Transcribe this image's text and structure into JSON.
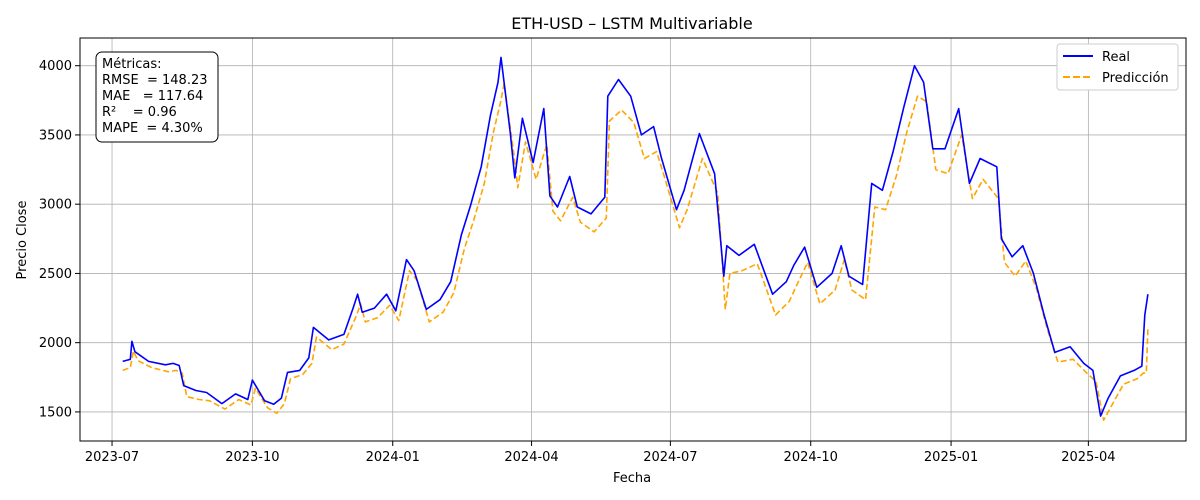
{
  "chart_data": {
    "type": "line",
    "title": "ETH-USD – LSTM Multivariable",
    "xlabel": "Fecha",
    "ylabel": "Precio Close",
    "x_range": [
      "2023-06-10",
      "2025-06-04"
    ],
    "ylim": [
      1290,
      4200
    ],
    "x_ticks": [
      "2023-07-01",
      "2023-10-01",
      "2024-01-01",
      "2024-04-01",
      "2024-07-01",
      "2024-10-01",
      "2025-01-01",
      "2025-04-01"
    ],
    "x_tick_labels": [
      "2023-07",
      "2023-10",
      "2024-01",
      "2024-04",
      "2024-07",
      "2024-10",
      "2025-01",
      "2025-04"
    ],
    "y_ticks": [
      1500,
      2000,
      2500,
      3000,
      3500,
      4000
    ],
    "y_tick_labels": [
      "1500",
      "2000",
      "2500",
      "3000",
      "3500",
      "4000"
    ],
    "grid": true,
    "legend_position": "top-right",
    "series": [
      {
        "name": "Real",
        "color": "#0000ff",
        "style": "solid",
        "points": [
          [
            "2023-07-08",
            1865
          ],
          [
            "2023-07-13",
            1880
          ],
          [
            "2023-07-14",
            2010
          ],
          [
            "2023-07-16",
            1935
          ],
          [
            "2023-07-25",
            1865
          ],
          [
            "2023-08-05",
            1840
          ],
          [
            "2023-08-10",
            1850
          ],
          [
            "2023-08-14",
            1835
          ],
          [
            "2023-08-17",
            1690
          ],
          [
            "2023-08-25",
            1655
          ],
          [
            "2023-09-01",
            1640
          ],
          [
            "2023-09-11",
            1560
          ],
          [
            "2023-09-20",
            1630
          ],
          [
            "2023-09-28",
            1590
          ],
          [
            "2023-10-01",
            1730
          ],
          [
            "2023-10-09",
            1580
          ],
          [
            "2023-10-15",
            1555
          ],
          [
            "2023-10-20",
            1600
          ],
          [
            "2023-10-24",
            1785
          ],
          [
            "2023-11-01",
            1800
          ],
          [
            "2023-11-07",
            1890
          ],
          [
            "2023-11-10",
            2110
          ],
          [
            "2023-11-20",
            2020
          ],
          [
            "2023-11-30",
            2060
          ],
          [
            "2023-12-06",
            2250
          ],
          [
            "2023-12-09",
            2350
          ],
          [
            "2023-12-12",
            2220
          ],
          [
            "2023-12-20",
            2250
          ],
          [
            "2023-12-28",
            2350
          ],
          [
            "2024-01-03",
            2230
          ],
          [
            "2024-01-10",
            2600
          ],
          [
            "2024-01-15",
            2520
          ],
          [
            "2024-01-23",
            2240
          ],
          [
            "2024-02-01",
            2310
          ],
          [
            "2024-02-08",
            2440
          ],
          [
            "2024-02-15",
            2780
          ],
          [
            "2024-02-21",
            2990
          ],
          [
            "2024-02-28",
            3270
          ],
          [
            "2024-03-05",
            3640
          ],
          [
            "2024-03-10",
            3880
          ],
          [
            "2024-03-12",
            4060
          ],
          [
            "2024-03-18",
            3520
          ],
          [
            "2024-03-21",
            3190
          ],
          [
            "2024-03-26",
            3620
          ],
          [
            "2024-04-02",
            3300
          ],
          [
            "2024-04-09",
            3690
          ],
          [
            "2024-04-13",
            3060
          ],
          [
            "2024-04-18",
            2980
          ],
          [
            "2024-04-26",
            3200
          ],
          [
            "2024-05-01",
            2980
          ],
          [
            "2024-05-10",
            2930
          ],
          [
            "2024-05-19",
            3050
          ],
          [
            "2024-05-21",
            3780
          ],
          [
            "2024-05-28",
            3900
          ],
          [
            "2024-06-05",
            3780
          ],
          [
            "2024-06-12",
            3500
          ],
          [
            "2024-06-20",
            3560
          ],
          [
            "2024-06-25",
            3340
          ],
          [
            "2024-07-05",
            2960
          ],
          [
            "2024-07-10",
            3100
          ],
          [
            "2024-07-20",
            3510
          ],
          [
            "2024-07-30",
            3220
          ],
          [
            "2024-08-05",
            2480
          ],
          [
            "2024-08-07",
            2700
          ],
          [
            "2024-08-15",
            2630
          ],
          [
            "2024-08-25",
            2710
          ],
          [
            "2024-09-06",
            2350
          ],
          [
            "2024-09-15",
            2440
          ],
          [
            "2024-09-20",
            2560
          ],
          [
            "2024-09-27",
            2690
          ],
          [
            "2024-10-05",
            2400
          ],
          [
            "2024-10-15",
            2500
          ],
          [
            "2024-10-21",
            2700
          ],
          [
            "2024-10-26",
            2480
          ],
          [
            "2024-11-04",
            2420
          ],
          [
            "2024-11-10",
            3150
          ],
          [
            "2024-11-17",
            3100
          ],
          [
            "2024-11-24",
            3380
          ],
          [
            "2024-12-01",
            3700
          ],
          [
            "2024-12-08",
            4000
          ],
          [
            "2024-12-14",
            3880
          ],
          [
            "2024-12-20",
            3400
          ],
          [
            "2024-12-28",
            3400
          ],
          [
            "2025-01-06",
            3690
          ],
          [
            "2025-01-13",
            3150
          ],
          [
            "2025-01-20",
            3330
          ],
          [
            "2025-01-31",
            3270
          ],
          [
            "2025-02-03",
            2750
          ],
          [
            "2025-02-10",
            2620
          ],
          [
            "2025-02-17",
            2700
          ],
          [
            "2025-02-24",
            2500
          ],
          [
            "2025-03-03",
            2200
          ],
          [
            "2025-03-10",
            1930
          ],
          [
            "2025-03-20",
            1970
          ],
          [
            "2025-03-29",
            1850
          ],
          [
            "2025-04-04",
            1800
          ],
          [
            "2025-04-09",
            1470
          ],
          [
            "2025-04-14",
            1600
          ],
          [
            "2025-04-22",
            1760
          ],
          [
            "2025-05-01",
            1800
          ],
          [
            "2025-05-06",
            1830
          ],
          [
            "2025-05-08",
            2200
          ],
          [
            "2025-05-10",
            2350
          ]
        ]
      },
      {
        "name": "Predicción",
        "color": "#ffa500",
        "style": "dashed",
        "points": [
          [
            "2023-07-08",
            1800
          ],
          [
            "2023-07-13",
            1820
          ],
          [
            "2023-07-15",
            1940
          ],
          [
            "2023-07-18",
            1870
          ],
          [
            "2023-07-27",
            1820
          ],
          [
            "2023-08-07",
            1790
          ],
          [
            "2023-08-12",
            1800
          ],
          [
            "2023-08-16",
            1780
          ],
          [
            "2023-08-19",
            1610
          ],
          [
            "2023-08-27",
            1590
          ],
          [
            "2023-09-03",
            1580
          ],
          [
            "2023-09-13",
            1520
          ],
          [
            "2023-09-22",
            1590
          ],
          [
            "2023-09-30",
            1550
          ],
          [
            "2023-10-03",
            1670
          ],
          [
            "2023-10-11",
            1530
          ],
          [
            "2023-10-17",
            1490
          ],
          [
            "2023-10-22",
            1560
          ],
          [
            "2023-10-26",
            1740
          ],
          [
            "2023-11-03",
            1770
          ],
          [
            "2023-11-09",
            1850
          ],
          [
            "2023-11-12",
            2040
          ],
          [
            "2023-11-22",
            1950
          ],
          [
            "2023-11-30",
            1990
          ],
          [
            "2023-12-08",
            2190
          ],
          [
            "2023-12-11",
            2280
          ],
          [
            "2023-12-14",
            2150
          ],
          [
            "2023-12-22",
            2180
          ],
          [
            "2023-12-30",
            2270
          ],
          [
            "2024-01-05",
            2160
          ],
          [
            "2024-01-12",
            2520
          ],
          [
            "2024-01-17",
            2450
          ],
          [
            "2024-01-25",
            2150
          ],
          [
            "2024-02-03",
            2220
          ],
          [
            "2024-02-10",
            2360
          ],
          [
            "2024-02-17",
            2680
          ],
          [
            "2024-02-23",
            2880
          ],
          [
            "2024-03-01",
            3150
          ],
          [
            "2024-03-07",
            3520
          ],
          [
            "2024-03-12",
            3750
          ],
          [
            "2024-03-14",
            3870
          ],
          [
            "2024-03-20",
            3400
          ],
          [
            "2024-03-23",
            3120
          ],
          [
            "2024-03-28",
            3450
          ],
          [
            "2024-04-04",
            3180
          ],
          [
            "2024-04-11",
            3430
          ],
          [
            "2024-04-15",
            2950
          ],
          [
            "2024-04-20",
            2880
          ],
          [
            "2024-04-28",
            3050
          ],
          [
            "2024-05-03",
            2870
          ],
          [
            "2024-05-12",
            2800
          ],
          [
            "2024-05-20",
            2900
          ],
          [
            "2024-05-22",
            3600
          ],
          [
            "2024-05-30",
            3680
          ],
          [
            "2024-06-07",
            3590
          ],
          [
            "2024-06-14",
            3330
          ],
          [
            "2024-06-22",
            3380
          ],
          [
            "2024-06-27",
            3200
          ],
          [
            "2024-07-07",
            2830
          ],
          [
            "2024-07-12",
            2960
          ],
          [
            "2024-07-22",
            3330
          ],
          [
            "2024-08-01",
            3080
          ],
          [
            "2024-08-06",
            2240
          ],
          [
            "2024-08-09",
            2500
          ],
          [
            "2024-08-17",
            2520
          ],
          [
            "2024-08-27",
            2570
          ],
          [
            "2024-09-08",
            2200
          ],
          [
            "2024-09-17",
            2300
          ],
          [
            "2024-09-22",
            2420
          ],
          [
            "2024-09-29",
            2580
          ],
          [
            "2024-10-07",
            2280
          ],
          [
            "2024-10-17",
            2380
          ],
          [
            "2024-10-23",
            2600
          ],
          [
            "2024-10-28",
            2380
          ],
          [
            "2024-11-06",
            2310
          ],
          [
            "2024-11-12",
            2980
          ],
          [
            "2024-11-19",
            2960
          ],
          [
            "2024-11-26",
            3200
          ],
          [
            "2024-12-03",
            3520
          ],
          [
            "2024-12-10",
            3780
          ],
          [
            "2024-12-16",
            3740
          ],
          [
            "2024-12-22",
            3250
          ],
          [
            "2024-12-30",
            3220
          ],
          [
            "2025-01-08",
            3500
          ],
          [
            "2025-01-15",
            3040
          ],
          [
            "2025-01-22",
            3180
          ],
          [
            "2025-02-01",
            3040
          ],
          [
            "2025-02-05",
            2580
          ],
          [
            "2025-02-12",
            2480
          ],
          [
            "2025-02-19",
            2590
          ],
          [
            "2025-02-26",
            2390
          ],
          [
            "2025-03-05",
            2100
          ],
          [
            "2025-03-12",
            1860
          ],
          [
            "2025-03-22",
            1880
          ],
          [
            "2025-03-31",
            1780
          ],
          [
            "2025-04-06",
            1720
          ],
          [
            "2025-04-11",
            1440
          ],
          [
            "2025-04-16",
            1540
          ],
          [
            "2025-04-24",
            1700
          ],
          [
            "2025-05-03",
            1740
          ],
          [
            "2025-05-07",
            1780
          ],
          [
            "2025-05-09",
            1780
          ],
          [
            "2025-05-10",
            2100
          ]
        ]
      }
    ],
    "annotations": {
      "metrics": [
        "Métricas:",
        "RMSE  = 148.23",
        "MAE   = 117.64",
        "R²    = 0.96",
        "MAPE  = 4.30%"
      ]
    }
  }
}
